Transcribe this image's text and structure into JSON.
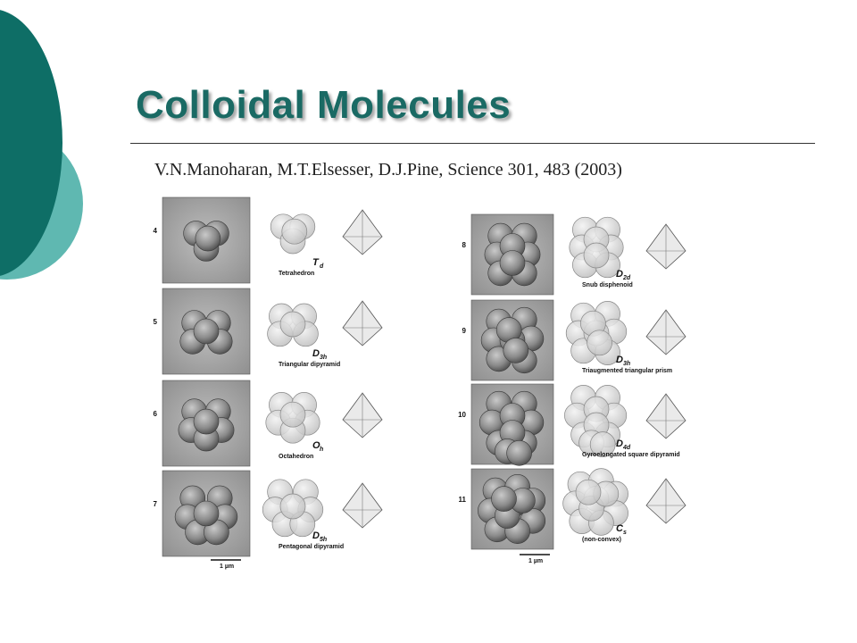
{
  "slide": {
    "title": "Colloidal Molecules",
    "citation": "V.N.Manoharan, M.T.Elsesser, D.J.Pine, Science 301, 483 (2003)"
  },
  "theme": {
    "title_color": "#1a6a64",
    "dark_teal": "#0e6e66",
    "light_teal": "#5fb8b1"
  },
  "figure": {
    "left_panels": [
      {
        "n": "4",
        "symbol": "T",
        "subscript": "d",
        "name": "Tetrahedron"
      },
      {
        "n": "5",
        "symbol": "D",
        "subscript": "3h",
        "name": "Triangular dipyramid"
      },
      {
        "n": "6",
        "symbol": "O",
        "subscript": "h",
        "name": "Octahedron"
      },
      {
        "n": "7",
        "symbol": "D",
        "subscript": "5h",
        "name": "Pentagonal dipyramid"
      }
    ],
    "right_panels": [
      {
        "n": "8",
        "symbol": "D",
        "subscript": "2d",
        "name": "Snub disphenoid"
      },
      {
        "n": "9",
        "symbol": "D",
        "subscript": "3h",
        "name": "Triaugmented triangular prism"
      },
      {
        "n": "10",
        "symbol": "D",
        "subscript": "4d",
        "name": "Gyroelongated square dipyramid"
      },
      {
        "n": "11",
        "symbol": "C",
        "subscript": "s",
        "name": "(non-convex)"
      }
    ],
    "scale_left": "1 µm",
    "scale_right": "1 µm"
  }
}
